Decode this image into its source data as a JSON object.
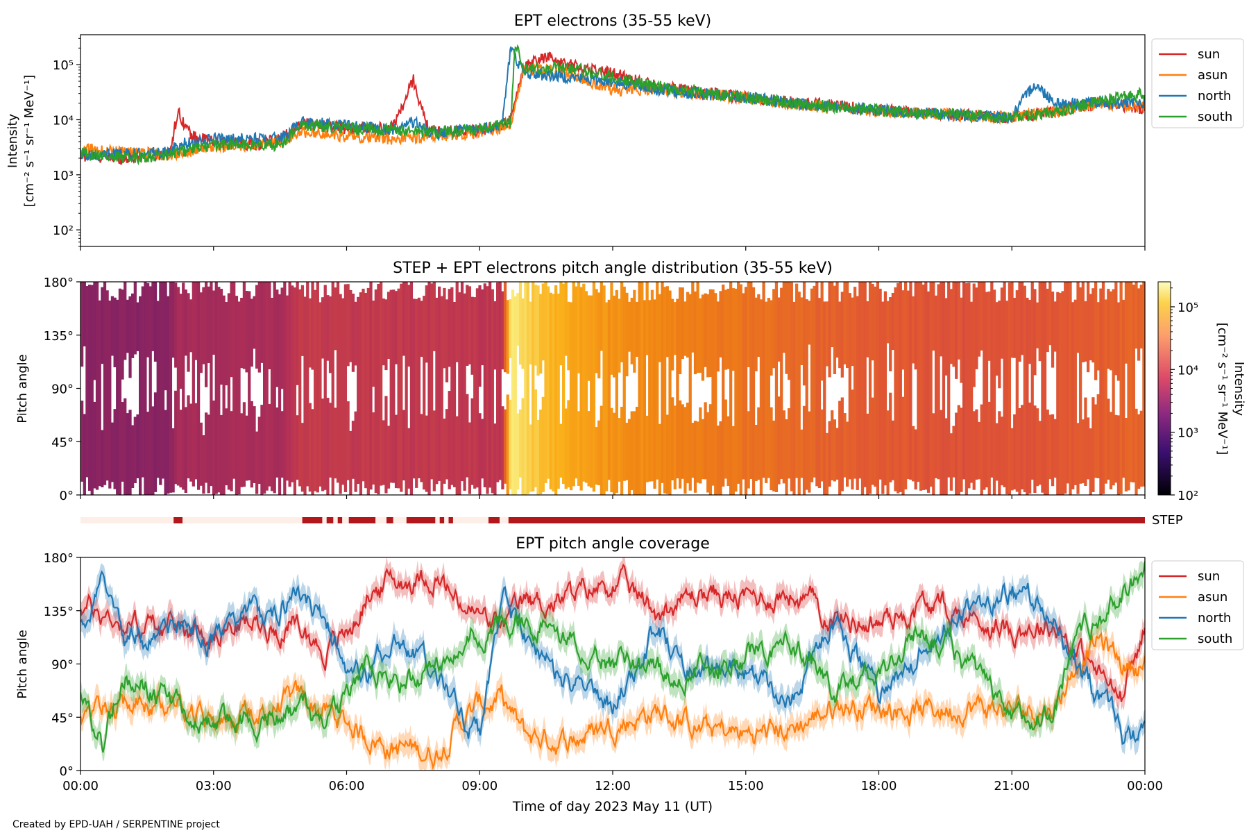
{
  "footer": {
    "credit": "Created by EPD-UAH / SERPENTINE project"
  },
  "colors": {
    "sun": "#d62728",
    "asun": "#ff7f0e",
    "north": "#1f77b4",
    "south": "#2ca02c",
    "step_on": "#b2181b",
    "step_off": "#fdeee8"
  },
  "chart_data": [
    {
      "type": "line",
      "title": "EPT electrons (35-55 keV)",
      "ylabel": [
        "Intensity",
        "[cm⁻² s⁻¹ sr⁻¹ MeV⁻¹]"
      ],
      "yscale": "log",
      "ylim": [
        50,
        350000
      ],
      "yticks": [
        {
          "value": 100,
          "label": "10²"
        },
        {
          "value": 1000,
          "label": "10³"
        },
        {
          "value": 10000,
          "label": "10⁴"
        },
        {
          "value": 100000,
          "label": "10⁵"
        }
      ],
      "xlim": [
        0,
        24
      ],
      "legend": {
        "placement": "outside-right",
        "entries": [
          "sun",
          "asun",
          "north",
          "south"
        ]
      },
      "series": [
        {
          "name": "sun",
          "x": [
            0,
            1,
            2,
            2.2,
            2.5,
            3,
            4,
            4.5,
            5,
            6,
            7,
            7.3,
            7.5,
            7.8,
            8,
            9,
            9.5,
            9.7,
            10,
            10.5,
            11,
            12,
            13,
            15,
            17,
            19,
            21,
            22,
            23,
            24
          ],
          "y": [
            2200,
            2000,
            2500,
            14000,
            5000,
            4000,
            3500,
            4500,
            9000,
            7000,
            7000,
            20000,
            55000,
            8000,
            6000,
            6500,
            8000,
            10000,
            90000,
            140000,
            100000,
            70000,
            40000,
            25000,
            18000,
            13000,
            11000,
            14000,
            20000,
            16000
          ]
        },
        {
          "name": "asun",
          "x": [
            0,
            1,
            2,
            2.2,
            3,
            4,
            4.5,
            5,
            6,
            7,
            8,
            9,
            9.5,
            9.7,
            10,
            11,
            12,
            13,
            15,
            17,
            19,
            21,
            22,
            23,
            24
          ],
          "y": [
            3000,
            2500,
            2300,
            2500,
            3200,
            3500,
            4000,
            6000,
            5000,
            4500,
            5000,
            6000,
            7000,
            9000,
            85000,
            70000,
            35000,
            35000,
            25000,
            16000,
            13000,
            11000,
            14000,
            20000,
            17000
          ]
        },
        {
          "name": "north",
          "x": [
            0,
            1,
            2,
            2.2,
            3,
            4,
            4.5,
            5,
            6,
            7,
            7.5,
            8,
            9,
            9.5,
            9.7,
            10,
            11,
            12,
            13,
            15,
            17,
            19,
            21,
            21.5,
            22,
            22.5,
            23,
            24
          ],
          "y": [
            2200,
            2400,
            2600,
            3500,
            4500,
            4500,
            4500,
            9000,
            8000,
            6500,
            9000,
            5500,
            7000,
            8000,
            200000,
            70000,
            60000,
            50000,
            35000,
            25000,
            17000,
            13000,
            11000,
            45000,
            20000,
            20000,
            20000,
            20000
          ]
        },
        {
          "name": "south",
          "x": [
            0,
            1,
            2,
            2.2,
            3,
            4,
            4.5,
            5,
            6,
            7,
            8,
            9,
            9.5,
            9.7,
            9.8,
            10,
            11,
            12,
            13,
            15,
            17,
            19,
            21,
            22,
            23,
            24
          ],
          "y": [
            2500,
            2000,
            2300,
            2600,
            3500,
            3500,
            3500,
            8000,
            7000,
            6500,
            6000,
            6500,
            8000,
            9000,
            250000,
            80000,
            90000,
            60000,
            40000,
            25000,
            17000,
            13000,
            11000,
            14000,
            22000,
            30000
          ]
        }
      ]
    },
    {
      "type": "heatmap",
      "title": "STEP + EPT electrons pitch angle distribution (35-55 keV)",
      "ylabel": "Pitch angle",
      "ylim": [
        0,
        180
      ],
      "yticks": [
        "0°",
        "45°",
        "90°",
        "135°",
        "180°"
      ],
      "xlim": [
        0,
        24
      ],
      "colorbar": {
        "label": "Intensity\n[cm⁻² s⁻¹ sr⁻¹ MeV⁻¹]",
        "scale": "log",
        "range": [
          100,
          250000
        ],
        "ticks": [
          "10²",
          "10³",
          "10⁴",
          "10⁵"
        ]
      },
      "intensity_profile": {
        "x": [
          0,
          2,
          2.2,
          4.5,
          5,
          9.5,
          9.7,
          10.5,
          12,
          14,
          17,
          20,
          22,
          24
        ],
        "y": [
          2200,
          2200,
          4000,
          4500,
          8000,
          7000,
          150000,
          90000,
          50000,
          35000,
          20000,
          14000,
          16000,
          22000
        ]
      },
      "step_strip": {
        "label": "STEP",
        "on_intervals": [
          [
            2.1,
            2.3
          ],
          [
            5.0,
            5.45
          ],
          [
            5.55,
            5.7
          ],
          [
            5.8,
            5.9
          ],
          [
            6.05,
            6.65
          ],
          [
            6.9,
            7.05
          ],
          [
            7.35,
            8.0
          ],
          [
            8.1,
            8.2
          ],
          [
            8.3,
            8.4
          ],
          [
            9.2,
            9.45
          ],
          [
            9.65,
            24
          ]
        ]
      }
    },
    {
      "type": "line",
      "title": "EPT pitch angle coverage",
      "ylabel": "Pitch angle",
      "xlabel": "Time of day 2023 May 11 (UT)",
      "ylim": [
        0,
        180
      ],
      "yticks": [
        "0°",
        "45°",
        "90°",
        "135°",
        "180°"
      ],
      "xticks": [
        "00:00",
        "03:00",
        "06:00",
        "09:00",
        "12:00",
        "15:00",
        "18:00",
        "21:00",
        "00:00"
      ],
      "xlim": [
        0,
        24
      ],
      "legend": {
        "placement": "outside-right",
        "entries": [
          "sun",
          "asun",
          "north",
          "south"
        ]
      },
      "series": [
        {
          "name": "sun",
          "x": [
            0,
            1,
            2,
            3,
            4,
            5,
            5.5,
            6,
            6.5,
            7,
            8,
            8.5,
            9,
            9.5,
            10,
            11,
            12,
            13,
            14,
            15,
            16,
            17,
            18,
            19,
            20,
            21,
            22,
            22.5,
            23,
            23.5,
            24
          ],
          "y": [
            140,
            125,
            120,
            120,
            125,
            120,
            100,
            115,
            150,
            160,
            165,
            140,
            130,
            120,
            140,
            145,
            160,
            135,
            150,
            145,
            150,
            130,
            125,
            140,
            130,
            120,
            125,
            100,
            80,
            60,
            120
          ]
        },
        {
          "name": "asun",
          "x": [
            0,
            1,
            2,
            3,
            4,
            5,
            5.5,
            6,
            6.5,
            7,
            8,
            8.5,
            9,
            9.5,
            10,
            11,
            12,
            13,
            14,
            15,
            16,
            17,
            18,
            19,
            20,
            21,
            22,
            22.5,
            23,
            23.5,
            24
          ],
          "y": [
            45,
            55,
            60,
            40,
            50,
            60,
            50,
            40,
            30,
            20,
            15,
            40,
            55,
            60,
            30,
            25,
            40,
            50,
            35,
            30,
            35,
            55,
            55,
            50,
            55,
            50,
            55,
            95,
            110,
            90,
            90
          ]
        },
        {
          "name": "north",
          "x": [
            0,
            0.5,
            1,
            2,
            3,
            4,
            5,
            5.5,
            6,
            6.5,
            7,
            7.5,
            8,
            8.5,
            9,
            9.5,
            10,
            11,
            12,
            13,
            14,
            15,
            16,
            17,
            18,
            19,
            20,
            21,
            22,
            22.5,
            23,
            23.5,
            24
          ],
          "y": [
            120,
            165,
            100,
            120,
            110,
            130,
            150,
            130,
            90,
            80,
            110,
            100,
            90,
            60,
            30,
            150,
            110,
            70,
            55,
            120,
            80,
            85,
            60,
            130,
            60,
            100,
            140,
            150,
            130,
            80,
            60,
            30,
            30
          ]
        },
        {
          "name": "south",
          "x": [
            0,
            0.5,
            1,
            2,
            3,
            4,
            5,
            5.5,
            6,
            6.5,
            7,
            7.5,
            8,
            8.5,
            9,
            9.5,
            10,
            11,
            12,
            13,
            14,
            15,
            16,
            17,
            18,
            19,
            20,
            21,
            22,
            22.5,
            23,
            23.5,
            24
          ],
          "y": [
            70,
            20,
            80,
            60,
            40,
            45,
            55,
            45,
            60,
            90,
            80,
            75,
            90,
            110,
            120,
            130,
            130,
            110,
            90,
            80,
            85,
            95,
            110,
            70,
            80,
            120,
            90,
            40,
            55,
            120,
            130,
            150,
            175
          ]
        }
      ]
    }
  ]
}
